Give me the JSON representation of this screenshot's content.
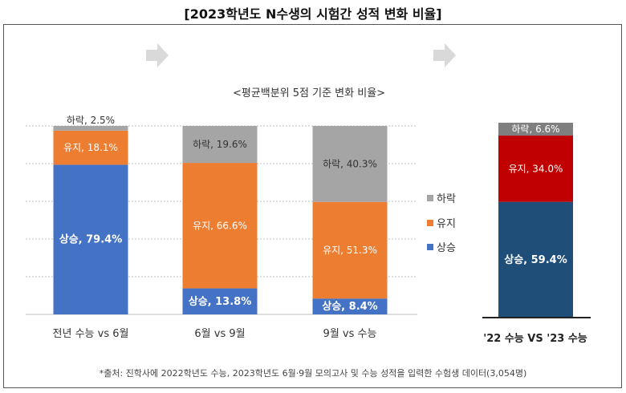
{
  "page_title": "[2023학년도 N수생의 시험간 성적 변화 비율]",
  "footnote": "*출처: 진학사에 2022학년도 수능, 2023학년도 6월·9월 모의고사 및 수능 성적을 입력한 수험생 데이터(3,054명)",
  "colors": {
    "상승": "#4472C4",
    "유지": "#ED7D31",
    "하락": "#A5A5A5",
    "right_상승": "#1F4E79",
    "right_유지": "#C00000",
    "right_하락": "#7F7F7F"
  },
  "chart_data": [
    {
      "type": "bar",
      "title": "<평균백분위 5점 기준 변화 비율>",
      "stacked": true,
      "categories": [
        "전년 수능 vs 6월",
        "6월 vs 9월",
        "9월 vs 수능"
      ],
      "series": [
        {
          "name": "상승",
          "values": [
            79.4,
            13.8,
            8.4
          ],
          "labels": [
            "상승, 79.4%",
            "상승, 13.8%",
            "상승, 8.4%"
          ]
        },
        {
          "name": "유지",
          "values": [
            18.1,
            66.6,
            51.3
          ],
          "labels": [
            "유지, 18.1%",
            "유지, 66.6%",
            "유지, 51.3%"
          ]
        },
        {
          "name": "하락",
          "values": [
            2.5,
            19.6,
            40.3
          ],
          "labels": [
            "하락, 2.5%",
            "하락, 19.6%",
            "하락, 40.3%"
          ]
        }
      ],
      "legend": [
        "하락",
        "유지",
        "상승"
      ],
      "legend_position": "right",
      "ylim": [
        0,
        100
      ],
      "grid": true
    },
    {
      "type": "bar",
      "stacked": true,
      "categories": [
        "'22 수능 VS '23 수능"
      ],
      "series": [
        {
          "name": "상승",
          "values": [
            59.4
          ],
          "labels": [
            "상승, 59.4%"
          ]
        },
        {
          "name": "유지",
          "values": [
            34.0
          ],
          "labels": [
            "유지, 34.0%"
          ]
        },
        {
          "name": "하락",
          "values": [
            6.6
          ],
          "labels": [
            "하락, 6.6%"
          ]
        }
      ],
      "ylim": [
        0,
        100
      ]
    }
  ]
}
